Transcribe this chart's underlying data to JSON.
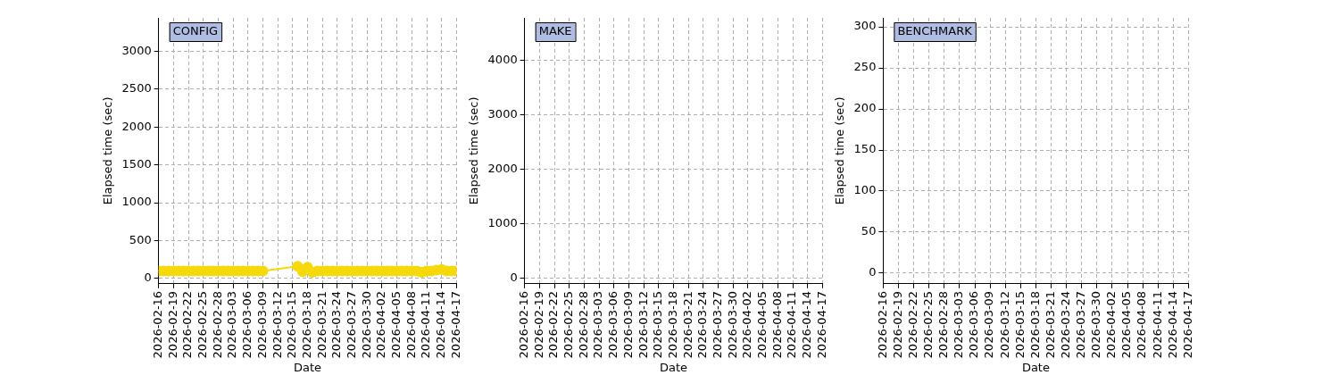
{
  "chart_data": [
    {
      "type": "line",
      "title": "CONFIG",
      "xlabel": "Date",
      "ylabel": "Elapsed time (sec)",
      "color": "#f5d90a",
      "marker": "circle",
      "grid": true,
      "x": [
        "2026-02-16",
        "2026-02-17",
        "2026-02-18",
        "2026-02-19",
        "2026-02-20",
        "2026-02-21",
        "2026-02-22",
        "2026-02-23",
        "2026-02-24",
        "2026-02-25",
        "2026-02-26",
        "2026-02-27",
        "2026-02-28",
        "2026-03-01",
        "2026-03-02",
        "2026-03-03",
        "2026-03-04",
        "2026-03-05",
        "2026-03-06",
        "2026-03-07",
        "2026-03-08",
        "2026-03-09",
        "2026-03-16",
        "2026-03-17",
        "2026-03-18",
        "2026-03-19",
        "2026-03-20",
        "2026-03-21",
        "2026-03-22",
        "2026-03-23",
        "2026-03-24",
        "2026-03-25",
        "2026-03-26",
        "2026-03-27",
        "2026-03-28",
        "2026-03-29",
        "2026-03-30",
        "2026-03-31",
        "2026-04-01",
        "2026-04-02",
        "2026-04-03",
        "2026-04-04",
        "2026-04-05",
        "2026-04-06",
        "2026-04-07",
        "2026-04-08",
        "2026-04-09",
        "2026-04-10",
        "2026-04-11",
        "2026-04-12",
        "2026-04-13",
        "2026-04-14",
        "2026-04-15",
        "2026-04-16",
        "2026-04-17"
      ],
      "values": [
        100,
        100,
        100,
        100,
        100,
        100,
        100,
        100,
        100,
        100,
        100,
        100,
        100,
        100,
        100,
        100,
        100,
        100,
        100,
        100,
        100,
        100,
        160,
        90,
        150,
        80,
        100,
        100,
        100,
        100,
        100,
        100,
        100,
        100,
        100,
        100,
        100,
        100,
        100,
        100,
        100,
        100,
        100,
        100,
        100,
        100,
        100,
        80,
        100,
        100,
        110,
        120,
        100,
        100,
        100
      ],
      "xlim": [
        "2026-02-16",
        "2026-04-17"
      ],
      "xticks": [
        "2026-02-16",
        "2026-02-19",
        "2026-02-22",
        "2026-02-25",
        "2026-02-28",
        "2026-03-03",
        "2026-03-06",
        "2026-03-09",
        "2026-03-12",
        "2026-03-15",
        "2026-03-18",
        "2026-03-21",
        "2026-03-24",
        "2026-03-27",
        "2026-03-30",
        "2026-04-02",
        "2026-04-05",
        "2026-04-08",
        "2026-04-11",
        "2026-04-14",
        "2026-04-17"
      ],
      "ylim": [
        -70,
        3440
      ],
      "yticks": [
        0,
        500,
        1000,
        1500,
        2000,
        2500,
        3000
      ]
    },
    {
      "type": "line",
      "title": "MAKE",
      "xlabel": "Date",
      "ylabel": "Elapsed time (sec)",
      "grid": true,
      "xlim": [
        "2026-02-16",
        "2026-04-17"
      ],
      "xticks": [
        "2026-02-16",
        "2026-02-19",
        "2026-02-22",
        "2026-02-25",
        "2026-02-28",
        "2026-03-03",
        "2026-03-06",
        "2026-03-09",
        "2026-03-12",
        "2026-03-15",
        "2026-03-18",
        "2026-03-21",
        "2026-03-24",
        "2026-03-27",
        "2026-03-30",
        "2026-04-02",
        "2026-04-05",
        "2026-04-08",
        "2026-04-11",
        "2026-04-14",
        "2026-04-17"
      ],
      "ylim": [
        -100,
        4780
      ],
      "yticks": [
        0,
        1000,
        2000,
        3000,
        4000
      ]
    },
    {
      "type": "line",
      "title": "BENCHMARK",
      "xlabel": "Date",
      "ylabel": "Elapsed time (sec)",
      "grid": true,
      "xlim": [
        "2026-02-16",
        "2026-04-17"
      ],
      "xticks": [
        "2026-02-16",
        "2026-02-19",
        "2026-02-22",
        "2026-02-25",
        "2026-02-28",
        "2026-03-03",
        "2026-03-06",
        "2026-03-09",
        "2026-03-12",
        "2026-03-15",
        "2026-03-18",
        "2026-03-21",
        "2026-03-24",
        "2026-03-27",
        "2026-03-30",
        "2026-04-02",
        "2026-04-05",
        "2026-04-08",
        "2026-04-11",
        "2026-04-14",
        "2026-04-17"
      ],
      "ylim": [
        -13,
        311
      ],
      "yticks": [
        0,
        50,
        100,
        150,
        200,
        250,
        300
      ]
    }
  ]
}
